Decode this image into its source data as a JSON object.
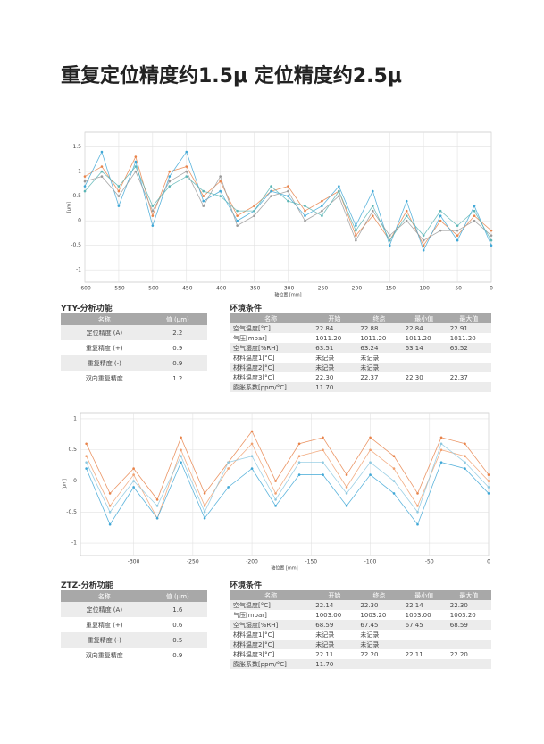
{
  "title": "重复定位精度约1.5μ  定位精度约2.5μ",
  "chart_data": [
    {
      "type": "line",
      "x_label": "轴位置 [mm]",
      "y_label": "[µm]",
      "grid": true,
      "x": [
        -600,
        -575,
        -550,
        -525,
        -500,
        -475,
        -450,
        -425,
        -400,
        -375,
        -350,
        -325,
        -300,
        -275,
        -250,
        -225,
        -200,
        -175,
        -150,
        -125,
        -100,
        -75,
        -50,
        -25,
        0
      ],
      "xlim": [
        -600,
        0
      ],
      "xticks": [
        -600,
        -550,
        -500,
        -450,
        -400,
        -350,
        -300,
        -250,
        -200,
        -150,
        -100,
        -50,
        0
      ],
      "ylim": [
        -1.25,
        1.8
      ],
      "yticks": [
        -1,
        -0.5,
        0,
        0.5,
        1,
        1.5
      ],
      "series": [
        {
          "color": "#e8834a",
          "values": [
            0.9,
            1.1,
            0.6,
            1.3,
            0.1,
            1.0,
            1.1,
            0.5,
            0.8,
            0.1,
            0.3,
            0.6,
            0.7,
            0.2,
            0.4,
            0.6,
            -0.3,
            0.1,
            -0.4,
            0.2,
            -0.5,
            0.0,
            -0.3,
            0.1,
            -0.2
          ]
        },
        {
          "color": "#3fa7d6",
          "values": [
            0.7,
            1.4,
            0.3,
            1.2,
            -0.1,
            0.9,
            1.4,
            0.4,
            0.6,
            0.0,
            0.2,
            0.6,
            0.5,
            0.1,
            0.3,
            0.7,
            -0.1,
            0.6,
            -0.5,
            0.4,
            -0.6,
            0.1,
            -0.4,
            0.3,
            -0.5
          ]
        },
        {
          "color": "#9a9a9a",
          "values": [
            0.8,
            0.9,
            0.5,
            1.0,
            0.2,
            0.8,
            1.0,
            0.3,
            0.9,
            -0.1,
            0.1,
            0.5,
            0.6,
            0.0,
            0.2,
            0.5,
            -0.4,
            0.2,
            -0.3,
            0.0,
            -0.4,
            -0.2,
            -0.2,
            0.0,
            -0.3
          ]
        },
        {
          "color": "#5bb5b5",
          "values": [
            0.6,
            1.0,
            0.7,
            1.1,
            0.3,
            0.7,
            0.9,
            0.6,
            0.5,
            0.2,
            0.2,
            0.7,
            0.4,
            0.3,
            0.1,
            0.6,
            -0.2,
            0.3,
            -0.4,
            0.1,
            -0.3,
            0.2,
            -0.1,
            0.2,
            -0.4
          ]
        }
      ]
    },
    {
      "type": "line",
      "x_label": "轴位置 [mm]",
      "y_label": "[µm]",
      "grid": true,
      "x": [
        -340,
        -320,
        -300,
        -280,
        -260,
        -240,
        -220,
        -200,
        -180,
        -160,
        -140,
        -120,
        -100,
        -80,
        -60,
        -40,
        -20,
        0
      ],
      "xlim": [
        -345,
        0
      ],
      "xticks": [
        -300,
        -250,
        -200,
        -150,
        -100,
        -50,
        0
      ],
      "ylim": [
        -1.2,
        1.1
      ],
      "yticks": [
        -1,
        -0.5,
        0,
        0.5,
        1
      ],
      "series": [
        {
          "color": "#e8834a",
          "values": [
            0.6,
            -0.2,
            0.2,
            -0.3,
            0.7,
            -0.2,
            0.3,
            0.8,
            0.0,
            0.6,
            0.7,
            0.1,
            0.7,
            0.4,
            -0.2,
            0.7,
            0.6,
            0.1
          ]
        },
        {
          "color": "#f0a070",
          "values": [
            0.4,
            -0.4,
            0.1,
            -0.6,
            0.5,
            -0.4,
            0.2,
            0.6,
            -0.2,
            0.4,
            0.5,
            -0.1,
            0.5,
            0.2,
            -0.4,
            0.5,
            0.4,
            0.0
          ]
        },
        {
          "color": "#3fa7d6",
          "values": [
            0.2,
            -0.7,
            -0.1,
            -0.6,
            0.3,
            -0.6,
            -0.1,
            0.2,
            -0.4,
            0.1,
            0.1,
            -0.4,
            0.1,
            -0.2,
            -0.7,
            0.3,
            0.2,
            -0.2
          ]
        },
        {
          "color": "#8cc8e0",
          "values": [
            0.3,
            -0.5,
            0.0,
            -0.4,
            0.4,
            -0.5,
            0.3,
            0.4,
            -0.3,
            0.3,
            0.3,
            -0.2,
            0.3,
            0.0,
            -0.5,
            0.6,
            0.3,
            -0.1
          ]
        }
      ]
    }
  ],
  "panels": [
    {
      "analysis": {
        "title": "YTY-分析功能",
        "header": [
          "名称",
          "值 (µm)"
        ],
        "rows": [
          [
            "定位精度 (A)",
            "2.2"
          ],
          [
            "重复精度 (+)",
            "0.9"
          ],
          [
            "重复精度 (-)",
            "0.9"
          ],
          [
            "双向重复精度",
            "1.2"
          ]
        ]
      },
      "environment": {
        "title": "环境条件",
        "header": [
          "名称",
          "开始",
          "终点",
          "最小值",
          "最大值"
        ],
        "rows": [
          [
            "空气温度[°C]",
            "22.84",
            "22.88",
            "22.84",
            "22.91"
          ],
          [
            "气压[mbar]",
            "1011.20",
            "1011.20",
            "1011.20",
            "1011.20"
          ],
          [
            "空气湿度[%RH]",
            "63.51",
            "63.24",
            "63.14",
            "63.52"
          ],
          [
            "材料温度1[°C]",
            "未记录",
            "未记录",
            null,
            null
          ],
          [
            "材料温度2[°C]",
            "未记录",
            "未记录",
            null,
            null
          ],
          [
            "材料温度3[°C]",
            "22.30",
            "22.37",
            "22.30",
            "22.37"
          ],
          [
            "膨胀系数[ppm/°C]",
            "11.70",
            null,
            null,
            null
          ]
        ]
      }
    },
    {
      "analysis": {
        "title": "ZTZ-分析功能",
        "header": [
          "名称",
          "值 (µm)"
        ],
        "rows": [
          [
            "定位精度 (A)",
            "1.6"
          ],
          [
            "重复精度 (+)",
            "0.6"
          ],
          [
            "重复精度 (-)",
            "0.5"
          ],
          [
            "双向重复精度",
            "0.9"
          ]
        ]
      },
      "environment": {
        "title": "环境条件",
        "header": [
          "名称",
          "开始",
          "终点",
          "最小值",
          "最大值"
        ],
        "rows": [
          [
            "空气温度[°C]",
            "22.14",
            "22.30",
            "22.14",
            "22.30"
          ],
          [
            "气压[mbar]",
            "1003.00",
            "1003.20",
            "1003.00",
            "1003.20"
          ],
          [
            "空气湿度[%RH]",
            "68.59",
            "67.45",
            "67.45",
            "68.59"
          ],
          [
            "材料温度1[°C]",
            "未记录",
            "未记录",
            null,
            null
          ],
          [
            "材料温度2[°C]",
            "未记录",
            "未记录",
            null,
            null
          ],
          [
            "材料温度3[°C]",
            "22.11",
            "22.20",
            "22.11",
            "22.20"
          ],
          [
            "膨胀系数[ppm/°C]",
            "11.70",
            null,
            null,
            null
          ]
        ]
      }
    }
  ]
}
